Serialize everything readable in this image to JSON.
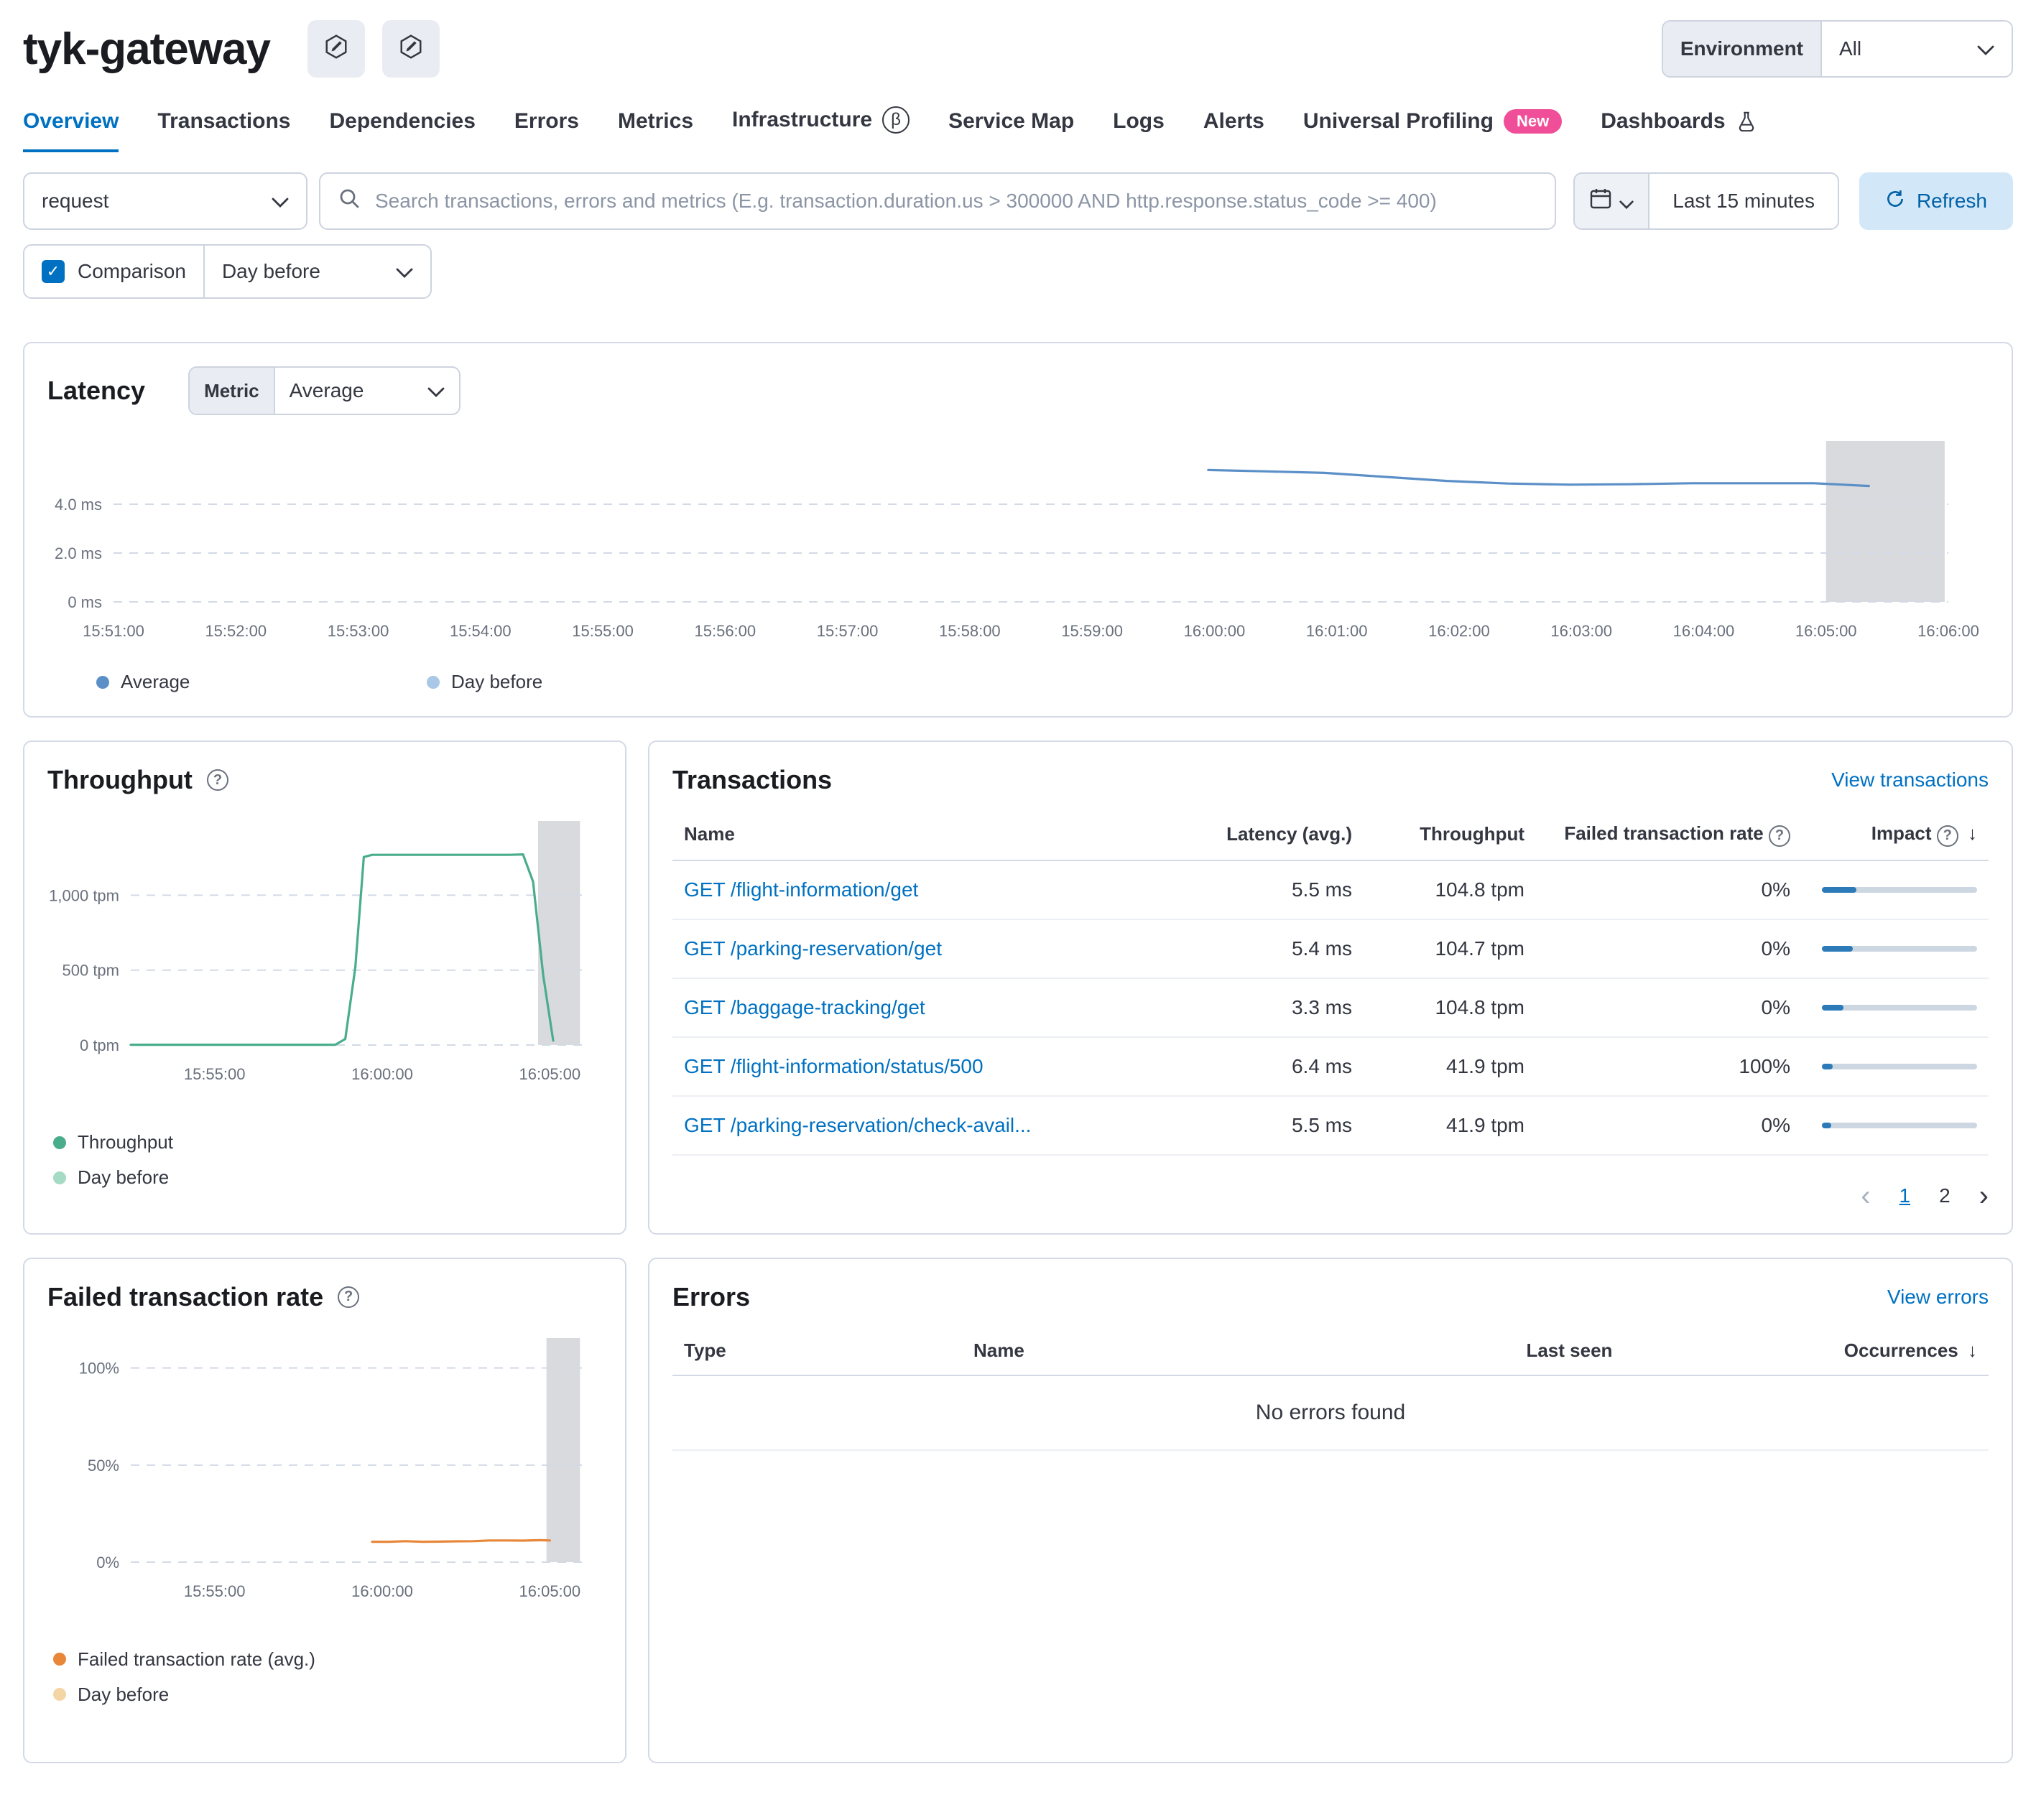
{
  "header": {
    "service_name": "tyk-gateway",
    "environment": {
      "label": "Environment",
      "value": "All"
    }
  },
  "tabs": [
    {
      "label": "Overview",
      "active": true
    },
    {
      "label": "Transactions"
    },
    {
      "label": "Dependencies"
    },
    {
      "label": "Errors"
    },
    {
      "label": "Metrics"
    },
    {
      "label": "Infrastructure",
      "badge": "beta",
      "badge_label": "β"
    },
    {
      "label": "Service Map"
    },
    {
      "label": "Logs"
    },
    {
      "label": "Alerts"
    },
    {
      "label": "Universal Profiling",
      "badge": "new",
      "badge_label": "New"
    },
    {
      "label": "Dashboards",
      "badge": "flask"
    }
  ],
  "filters": {
    "query_type": "request",
    "search_placeholder": "Search transactions, errors and metrics (E.g. transaction.duration.us > 300000 AND http.response.status_code >= 400)",
    "time_range": "Last 15 minutes",
    "refresh_label": "Refresh",
    "comparison": {
      "label": "Comparison",
      "checked": true,
      "value": "Day before"
    }
  },
  "latency_panel": {
    "title": "Latency",
    "metric_label": "Metric",
    "metric_value": "Average",
    "legend": [
      {
        "label": "Average",
        "color": "#5b8fc7"
      },
      {
        "label": "Day before",
        "color": "#a9c7e6"
      }
    ]
  },
  "throughput_panel": {
    "title": "Throughput",
    "legend": [
      {
        "label": "Throughput",
        "color": "#49ad8c"
      },
      {
        "label": "Day before",
        "color": "#a5dbc5"
      }
    ]
  },
  "transactions_panel": {
    "title": "Transactions",
    "view_link": "View transactions",
    "columns": {
      "name": "Name",
      "latency": "Latency (avg.)",
      "throughput": "Throughput",
      "failed_rate": "Failed transaction rate",
      "impact": "Impact"
    },
    "rows": [
      {
        "name": "GET /flight-information/get",
        "latency": "5.5 ms",
        "throughput": "104.8 tpm",
        "failed_rate": "0%",
        "impact_pct": 22
      },
      {
        "name": "GET /parking-reservation/get",
        "latency": "5.4 ms",
        "throughput": "104.7 tpm",
        "failed_rate": "0%",
        "impact_pct": 20
      },
      {
        "name": "GET /baggage-tracking/get",
        "latency": "3.3 ms",
        "throughput": "104.8 tpm",
        "failed_rate": "0%",
        "impact_pct": 14
      },
      {
        "name": "GET /flight-information/status/500",
        "latency": "6.4 ms",
        "throughput": "41.9 tpm",
        "failed_rate": "100%",
        "impact_pct": 7
      },
      {
        "name": "GET /parking-reservation/check-avail...",
        "latency": "5.5 ms",
        "throughput": "41.9 tpm",
        "failed_rate": "0%",
        "impact_pct": 6
      }
    ],
    "pagination": {
      "pages": [
        "1",
        "2"
      ],
      "active": "1"
    }
  },
  "failed_rate_panel": {
    "title": "Failed transaction rate",
    "legend": [
      {
        "label": "Failed transaction rate (avg.)",
        "color": "#e8873a"
      },
      {
        "label": "Day before",
        "color": "#f4d5a6"
      }
    ]
  },
  "errors_panel": {
    "title": "Errors",
    "view_link": "View errors",
    "columns": {
      "type": "Type",
      "name": "Name",
      "last_seen": "Last seen",
      "occurrences": "Occurrences"
    },
    "empty_message": "No errors found"
  },
  "colors": {
    "accent_link": "#0071c2",
    "new_badge": "#f04e98",
    "impact_bar": "#2c7bb8",
    "annotation_region": "#d9dadd"
  },
  "chart_data": [
    {
      "id": "latency",
      "type": "line",
      "title": "Latency",
      "x_unit": "minutes since 15:51:00",
      "x_domain": [
        0,
        15
      ],
      "y_unit": "ms",
      "y_domain": [
        0,
        6
      ],
      "y_ticks": [
        {
          "v": 0,
          "label": "0 ms"
        },
        {
          "v": 2,
          "label": "2.0 ms"
        },
        {
          "v": 4,
          "label": "4.0 ms"
        }
      ],
      "x_ticks": [
        {
          "x": 0,
          "label": "15:51:00"
        },
        {
          "x": 1,
          "label": "15:52:00"
        },
        {
          "x": 2,
          "label": "15:53:00"
        },
        {
          "x": 3,
          "label": "15:54:00"
        },
        {
          "x": 4,
          "label": "15:55:00"
        },
        {
          "x": 5,
          "label": "15:56:00"
        },
        {
          "x": 6,
          "label": "15:57:00"
        },
        {
          "x": 7,
          "label": "15:58:00"
        },
        {
          "x": 8,
          "label": "15:59:00"
        },
        {
          "x": 9,
          "label": "16:00:00"
        },
        {
          "x": 10,
          "label": "16:01:00"
        },
        {
          "x": 11,
          "label": "16:02:00"
        },
        {
          "x": 12,
          "label": "16:03:00"
        },
        {
          "x": 13,
          "label": "16:04:00"
        },
        {
          "x": 14,
          "label": "16:05:00"
        },
        {
          "x": 15,
          "label": "16:06:00"
        }
      ],
      "annotation": {
        "x0": 14.0,
        "x1": 14.97
      },
      "series": [
        {
          "name": "Average",
          "color": "#5b8fc7",
          "points": [
            [
              8.95,
              5.4
            ],
            [
              9.4,
              5.35
            ],
            [
              9.9,
              5.28
            ],
            [
              10.4,
              5.12
            ],
            [
              10.9,
              4.95
            ],
            [
              11.4,
              4.85
            ],
            [
              11.9,
              4.8
            ],
            [
              12.4,
              4.82
            ],
            [
              12.9,
              4.86
            ],
            [
              13.4,
              4.86
            ],
            [
              13.9,
              4.86
            ],
            [
              14.35,
              4.75
            ]
          ]
        },
        {
          "name": "Day before",
          "color": "#a9c7e6",
          "points": []
        }
      ]
    },
    {
      "id": "throughput",
      "type": "line",
      "title": "Throughput",
      "x_unit": "minutes since 15:52:30",
      "x_domain": [
        0,
        13.5
      ],
      "y_unit": "tpm",
      "y_domain": [
        0,
        1400
      ],
      "y_ticks": [
        {
          "v": 0,
          "label": "0 tpm"
        },
        {
          "v": 500,
          "label": "500 tpm"
        },
        {
          "v": 1000,
          "label": "1,000 tpm"
        }
      ],
      "x_ticks": [
        {
          "x": 2.5,
          "label": "15:55:00"
        },
        {
          "x": 7.5,
          "label": "16:00:00"
        },
        {
          "x": 12.5,
          "label": "16:05:00"
        }
      ],
      "annotation": {
        "x0": 12.15,
        "x1": 13.4
      },
      "series": [
        {
          "name": "Throughput",
          "color": "#49ad8c",
          "points": [
            [
              0,
              2
            ],
            [
              3,
              2
            ],
            [
              6.1,
              2
            ],
            [
              6.4,
              40
            ],
            [
              6.7,
              520
            ],
            [
              6.95,
              1255
            ],
            [
              7.2,
              1270
            ],
            [
              8.5,
              1270
            ],
            [
              10,
              1270
            ],
            [
              11.3,
              1270
            ],
            [
              11.7,
              1272
            ],
            [
              12.0,
              1090
            ],
            [
              12.3,
              470
            ],
            [
              12.6,
              30
            ]
          ]
        },
        {
          "name": "Day before",
          "color": "#a5dbc5",
          "points": []
        }
      ]
    },
    {
      "id": "failed_rate",
      "type": "line",
      "title": "Failed transaction rate",
      "x_unit": "minutes since 15:52:30",
      "x_domain": [
        0,
        13.5
      ],
      "y_unit": "%",
      "y_domain": [
        0,
        108
      ],
      "y_ticks": [
        {
          "v": 0,
          "label": "0%"
        },
        {
          "v": 50,
          "label": "50%"
        },
        {
          "v": 100,
          "label": "100%"
        }
      ],
      "x_ticks": [
        {
          "x": 2.5,
          "label": "15:55:00"
        },
        {
          "x": 7.5,
          "label": "16:00:00"
        },
        {
          "x": 12.5,
          "label": "16:05:00"
        }
      ],
      "annotation": {
        "x0": 12.4,
        "x1": 13.4
      },
      "series": [
        {
          "name": "Failed transaction rate (avg.)",
          "color": "#e8873a",
          "points": [
            [
              7.2,
              10.5
            ],
            [
              7.7,
              10.5
            ],
            [
              8.2,
              10.8
            ],
            [
              8.7,
              10.5
            ],
            [
              9.2,
              10.6
            ],
            [
              9.7,
              10.7
            ],
            [
              10.2,
              10.8
            ],
            [
              10.7,
              11.2
            ],
            [
              11.2,
              11.2
            ],
            [
              11.7,
              11.1
            ],
            [
              12.2,
              11.3
            ],
            [
              12.5,
              11.2
            ]
          ]
        },
        {
          "name": "Day before",
          "color": "#f4d5a6",
          "points": []
        }
      ]
    }
  ]
}
